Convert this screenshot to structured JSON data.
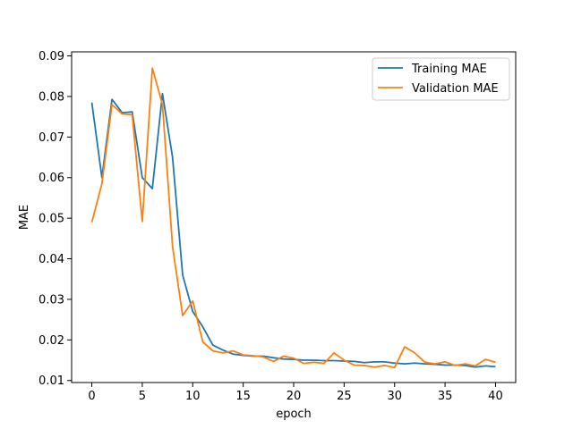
{
  "chart_data": {
    "type": "line",
    "title": "",
    "xlabel": "epoch",
    "ylabel": "MAE",
    "xlim": [
      -2,
      42
    ],
    "ylim": [
      0.0095,
      0.091
    ],
    "xticks": [
      0,
      5,
      10,
      15,
      20,
      25,
      30,
      35,
      40
    ],
    "yticks": [
      0.01,
      0.02,
      0.03,
      0.04,
      0.05,
      0.06,
      0.07,
      0.08,
      0.09
    ],
    "ytick_labels": [
      "0.01",
      "0.02",
      "0.03",
      "0.04",
      "0.05",
      "0.06",
      "0.07",
      "0.08",
      "0.09"
    ],
    "grid": false,
    "legend_position": "top-right",
    "x": [
      0,
      1,
      2,
      3,
      4,
      5,
      6,
      7,
      8,
      9,
      10,
      11,
      12,
      13,
      14,
      15,
      16,
      17,
      18,
      19,
      20,
      21,
      22,
      23,
      24,
      25,
      26,
      27,
      28,
      29,
      30,
      31,
      32,
      33,
      34,
      35,
      36,
      37,
      38,
      39,
      40
    ],
    "series": [
      {
        "name": "Training MAE",
        "color": "#1f77b4",
        "values": [
          0.0785,
          0.06,
          0.0793,
          0.076,
          0.0762,
          0.06,
          0.0573,
          0.0807,
          0.065,
          0.036,
          0.027,
          0.0232,
          0.0187,
          0.0175,
          0.0165,
          0.0162,
          0.016,
          0.016,
          0.0156,
          0.0153,
          0.0152,
          0.015,
          0.015,
          0.0149,
          0.0149,
          0.0148,
          0.0147,
          0.0144,
          0.0146,
          0.0146,
          0.0143,
          0.0141,
          0.0143,
          0.0141,
          0.014,
          0.0138,
          0.0138,
          0.0137,
          0.0133,
          0.0136,
          0.0134
        ]
      },
      {
        "name": "Validation MAE",
        "color": "#ff7f0e",
        "values": [
          0.049,
          0.0585,
          0.078,
          0.0757,
          0.0755,
          0.0492,
          0.087,
          0.078,
          0.043,
          0.026,
          0.0296,
          0.0195,
          0.0173,
          0.0168,
          0.0173,
          0.0163,
          0.0161,
          0.0158,
          0.0147,
          0.016,
          0.0155,
          0.0142,
          0.0145,
          0.0142,
          0.0168,
          0.015,
          0.0138,
          0.0137,
          0.0133,
          0.0137,
          0.0132,
          0.0183,
          0.0168,
          0.0145,
          0.0141,
          0.0146,
          0.0137,
          0.0141,
          0.0136,
          0.0152,
          0.0145
        ]
      }
    ]
  }
}
